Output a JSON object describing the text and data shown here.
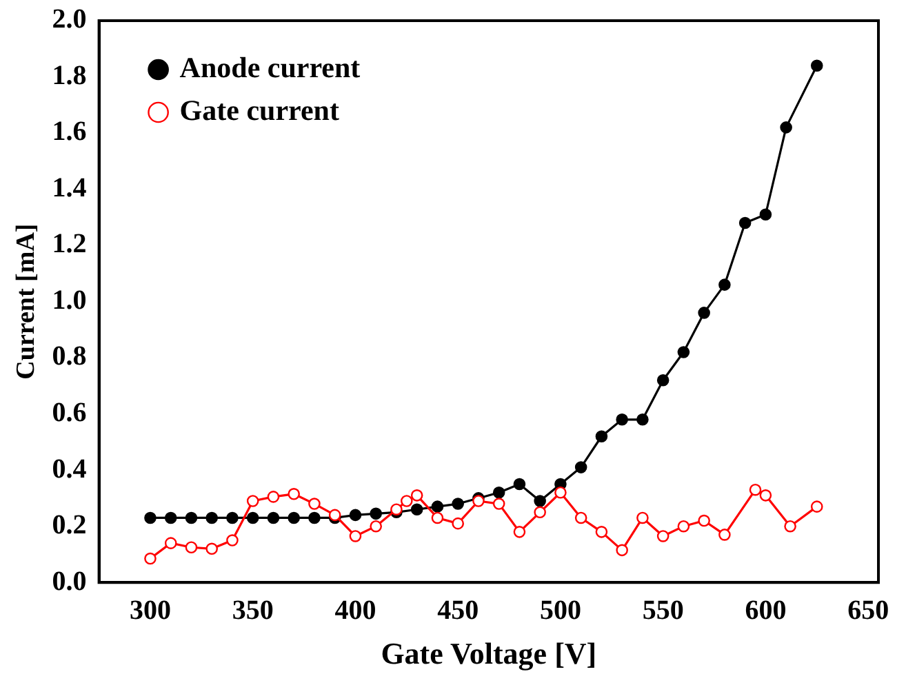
{
  "chart_data": {
    "type": "line",
    "xlabel": "Gate Voltage [V]",
    "ylabel": "Current [mA]",
    "xlim": [
      275,
      655
    ],
    "xticks": [
      300,
      350,
      400,
      450,
      500,
      550,
      600,
      650
    ],
    "ylim": [
      0,
      2
    ],
    "yticks": [
      {
        "value": 0,
        "label": "0.0"
      },
      0.2,
      0.4,
      0.6,
      0.8,
      {
        "value": 1,
        "label": "1.0"
      },
      1.2,
      1.4,
      1.6,
      1.8,
      {
        "value": 2,
        "label": "2.0"
      }
    ],
    "grid": false,
    "legend": "top left",
    "series": [
      {
        "name": "Anode current",
        "color": "#000000",
        "marker": "circle",
        "x": [
          300,
          310,
          320,
          330,
          340,
          350,
          360,
          370,
          380,
          390,
          400,
          410,
          420,
          430,
          440,
          450,
          460,
          470,
          480,
          490,
          500,
          510,
          520,
          530,
          540,
          550,
          560,
          570,
          580,
          590,
          600,
          610,
          625
        ],
        "values": [
          0.23,
          0.23,
          0.23,
          0.23,
          0.23,
          0.23,
          0.23,
          0.23,
          0.23,
          0.23,
          0.24,
          0.245,
          0.25,
          0.26,
          0.27,
          0.28,
          0.3,
          0.32,
          0.35,
          0.29,
          0.35,
          0.41,
          0.52,
          0.58,
          0.58,
          0.72,
          0.82,
          0.96,
          1.06,
          1.28,
          1.31,
          1.62,
          1.84
        ]
      },
      {
        "name": "Gate current",
        "color": "#ff0000",
        "marker": "circle",
        "x": [
          300,
          310,
          320,
          330,
          340,
          350,
          360,
          370,
          380,
          390,
          400,
          410,
          420,
          425,
          430,
          440,
          450,
          460,
          470,
          480,
          490,
          500,
          510,
          520,
          530,
          540,
          550,
          560,
          570,
          580,
          595,
          600,
          612,
          625
        ],
        "values": [
          0.085,
          0.14,
          0.125,
          0.12,
          0.15,
          0.29,
          0.305,
          0.315,
          0.28,
          0.24,
          0.165,
          0.2,
          0.26,
          0.29,
          0.31,
          0.23,
          0.21,
          0.29,
          0.28,
          0.18,
          0.25,
          0.32,
          0.23,
          0.18,
          0.115,
          0.23,
          0.165,
          0.2,
          0.22,
          0.17,
          0.33,
          0.31,
          0.2,
          0.27
        ]
      }
    ]
  }
}
